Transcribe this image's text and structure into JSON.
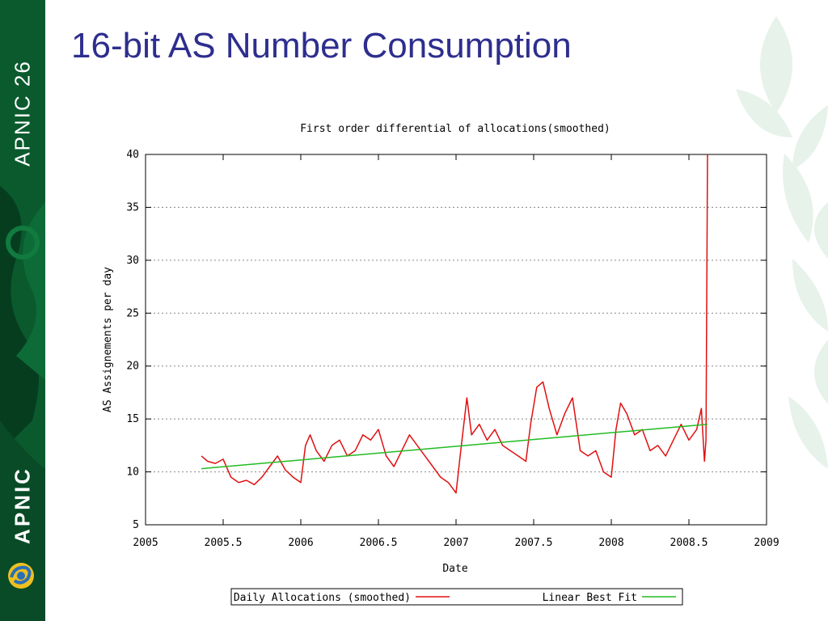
{
  "slide": {
    "title": "16-bit AS Number Consumption",
    "conference": "APNIC 26",
    "brand": "APNIC",
    "accent_color": "#2e2e8f",
    "band_color": "#0a5a2e"
  },
  "icons": {
    "brand_logo": "apnic-swirl-logo-icon",
    "background_decoration": "leaf-pattern-icon"
  },
  "chart_data": {
    "type": "line",
    "title": "First order differential of allocations(smoothed)",
    "xlabel": "Date",
    "ylabel": "AS Assignements per day",
    "xlim": [
      2005,
      2009
    ],
    "ylim": [
      5,
      40
    ],
    "x_ticks": [
      "2005",
      "2005.5",
      "2006",
      "2006.5",
      "2007",
      "2007.5",
      "2008",
      "2008.5",
      "2009"
    ],
    "y_ticks": [
      "5",
      "10",
      "15",
      "20",
      "25",
      "30",
      "35",
      "40"
    ],
    "grid": true,
    "legend_position": "bottom",
    "series": [
      {
        "name": "Daily Allocations (smoothed)",
        "color": "#e01010",
        "x": [
          2005.36,
          2005.4,
          2005.45,
          2005.5,
          2005.55,
          2005.6,
          2005.65,
          2005.7,
          2005.75,
          2005.8,
          2005.85,
          2005.9,
          2005.95,
          2006.0,
          2006.03,
          2006.06,
          2006.1,
          2006.15,
          2006.2,
          2006.25,
          2006.3,
          2006.35,
          2006.4,
          2006.45,
          2006.5,
          2006.55,
          2006.6,
          2006.65,
          2006.7,
          2006.75,
          2006.8,
          2006.85,
          2006.9,
          2006.95,
          2007.0,
          2007.03,
          2007.07,
          2007.1,
          2007.15,
          2007.2,
          2007.25,
          2007.3,
          2007.35,
          2007.4,
          2007.45,
          2007.48,
          2007.52,
          2007.56,
          2007.6,
          2007.65,
          2007.7,
          2007.75,
          2007.8,
          2007.85,
          2007.9,
          2007.95,
          2008.0,
          2008.03,
          2008.06,
          2008.1,
          2008.15,
          2008.2,
          2008.25,
          2008.3,
          2008.35,
          2008.4,
          2008.45,
          2008.5,
          2008.55,
          2008.58,
          2008.6,
          2008.61,
          2008.62
        ],
        "y": [
          11.5,
          11.0,
          10.8,
          11.2,
          9.5,
          9.0,
          9.2,
          8.8,
          9.5,
          10.5,
          11.5,
          10.2,
          9.5,
          9.0,
          12.5,
          13.5,
          12.0,
          11.0,
          12.5,
          13.0,
          11.5,
          12.0,
          13.5,
          13.0,
          14.0,
          11.5,
          10.5,
          12.0,
          13.5,
          12.5,
          11.5,
          10.5,
          9.5,
          9.0,
          8.0,
          12.0,
          17.0,
          13.5,
          14.5,
          13.0,
          14.0,
          12.5,
          12.0,
          11.5,
          11.0,
          14.5,
          18.0,
          18.5,
          16.0,
          13.5,
          15.5,
          17.0,
          12.0,
          11.5,
          12.0,
          10.0,
          9.5,
          14.0,
          16.5,
          15.5,
          13.5,
          14.0,
          12.0,
          12.5,
          11.5,
          13.0,
          14.5,
          13.0,
          14.0,
          16.0,
          11.0,
          13.0,
          40.0
        ]
      },
      {
        "name": "Linear Best Fit",
        "color": "#22bb22",
        "x": [
          2005.36,
          2008.62
        ],
        "y": [
          10.3,
          14.5
        ]
      }
    ]
  }
}
